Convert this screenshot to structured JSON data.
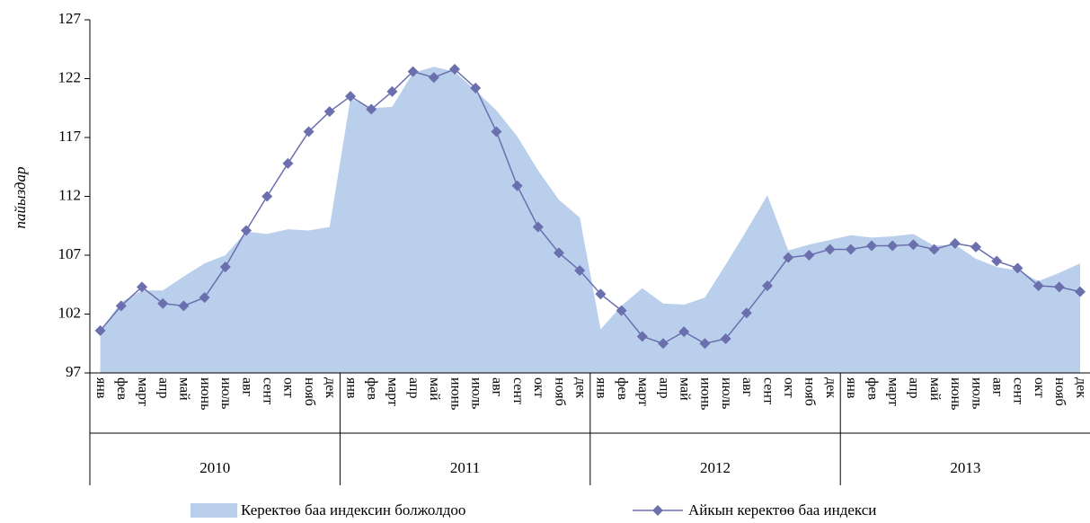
{
  "chart_data": {
    "type": "line",
    "y_label": "пайыздар",
    "categories": [
      "янв",
      "фев",
      "март",
      "апр",
      "май",
      "июнь",
      "июль",
      "авг",
      "сент",
      "окт",
      "нояб",
      "дек",
      "янв",
      "фев",
      "март",
      "апр",
      "май",
      "июнь",
      "июль",
      "авг",
      "сент",
      "окт",
      "нояб",
      "дек",
      "янв",
      "фев",
      "март",
      "апр",
      "май",
      "июнь",
      "июль",
      "авг",
      "сент",
      "окт",
      "нояб",
      "дек",
      "янв",
      "фев",
      "март",
      "апр",
      "май",
      "июнь",
      "июль",
      "авг",
      "сент",
      "окт",
      "нояб",
      "дек"
    ],
    "year_groups": [
      "2010",
      "2011",
      "2012",
      "2013"
    ],
    "ylim": [
      97,
      127
    ],
    "yticks": [
      97,
      102,
      107,
      112,
      117,
      122,
      127
    ],
    "series": [
      {
        "name": "Керектөө баа индексин болжолдоо",
        "type": "area",
        "color": "#b9cfec",
        "values": [
          100.6,
          103.0,
          104.0,
          104.0,
          105.2,
          106.3,
          107.0,
          109.0,
          108.8,
          109.2,
          109.1,
          109.4,
          120.3,
          119.5,
          119.6,
          122.5,
          123.0,
          122.6,
          121.0,
          119.3,
          117.1,
          114.2,
          111.7,
          110.2,
          100.7,
          102.7,
          104.2,
          102.9,
          102.8,
          103.4,
          106.2,
          109.1,
          112.1,
          107.4,
          107.9,
          108.3,
          108.7,
          108.5,
          108.6,
          108.8,
          107.8,
          107.9,
          106.7,
          106.0,
          105.7,
          104.8,
          105.5,
          106.3
        ]
      },
      {
        "name": "Айкын керектөө баа индекси",
        "type": "line",
        "color": "#6b6fae",
        "values": [
          100.6,
          102.7,
          104.3,
          102.9,
          102.7,
          103.4,
          106.0,
          109.1,
          112.0,
          114.8,
          117.5,
          119.2,
          120.5,
          119.4,
          120.9,
          122.6,
          122.1,
          122.8,
          121.2,
          117.5,
          112.9,
          109.4,
          107.2,
          105.7,
          103.7,
          102.3,
          100.1,
          99.5,
          100.5,
          99.5,
          99.9,
          102.1,
          104.4,
          106.8,
          107.0,
          107.5,
          107.5,
          107.8,
          107.8,
          107.9,
          107.5,
          108.0,
          107.7,
          106.5,
          105.9,
          104.4,
          104.3,
          103.9
        ]
      }
    ]
  }
}
